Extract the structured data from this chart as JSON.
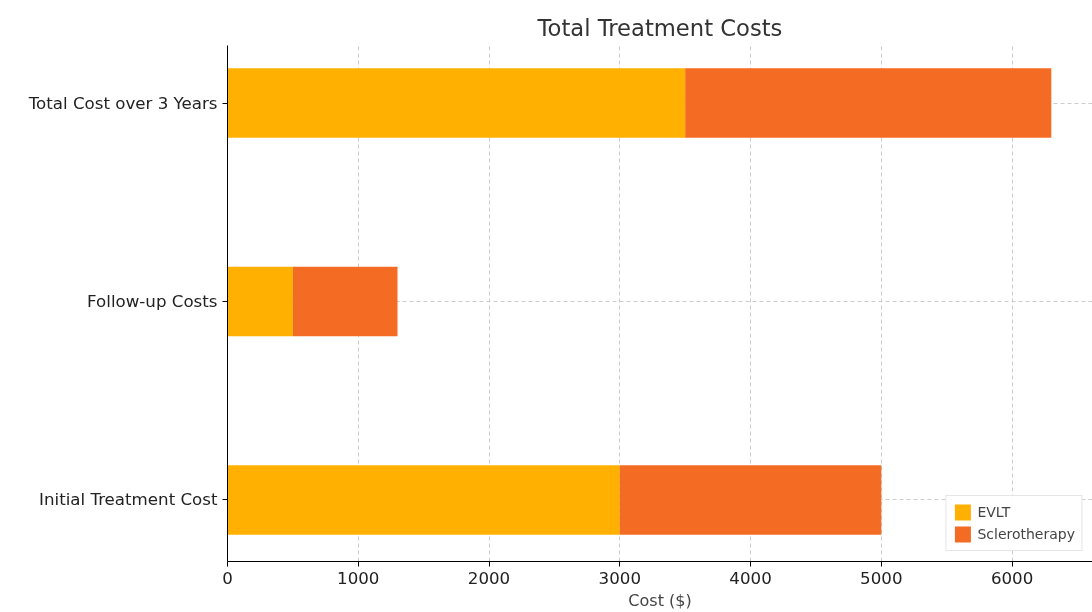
{
  "chart_data": {
    "type": "bar",
    "title": "Total Treatment Costs",
    "xlabel": "Cost ($)",
    "orientation": "horizontal",
    "stacked": true,
    "categories": [
      "Total Cost over 3 Years",
      "Follow-up Costs",
      "Initial Treatment Cost"
    ],
    "series": [
      {
        "name": "EVLT",
        "color": "#ffb000",
        "values": [
          3500,
          500,
          3000
        ]
      },
      {
        "name": "Sclerotherapy",
        "color": "#f46b23",
        "values": [
          2800,
          800,
          2000
        ]
      }
    ],
    "xlim": [
      0,
      6615
    ],
    "xticks": [
      0,
      1000,
      2000,
      3000,
      4000,
      5000,
      6000
    ],
    "grid": true,
    "legend": "bottom right"
  }
}
